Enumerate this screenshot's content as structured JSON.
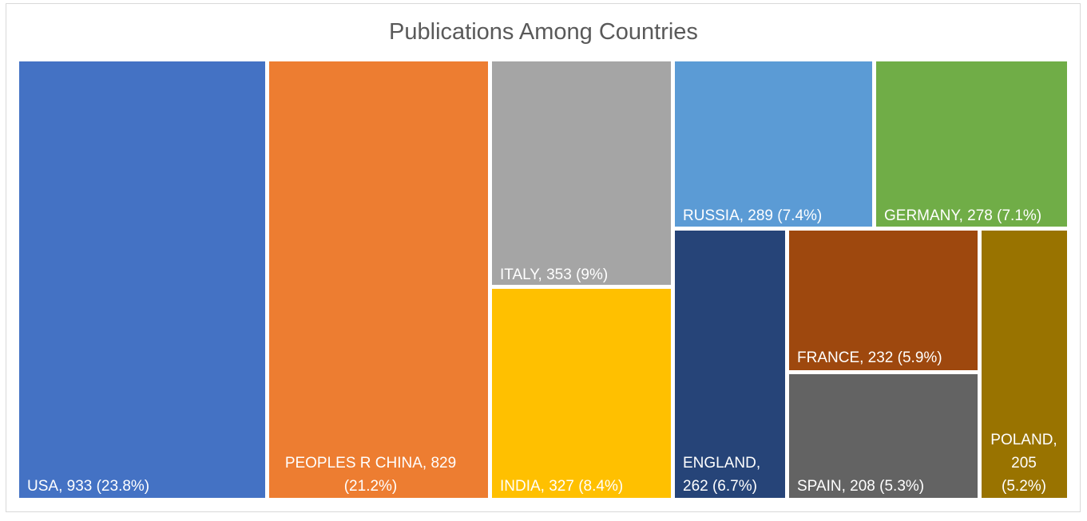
{
  "chart_data": {
    "type": "treemap",
    "title": "Publications Among Countries",
    "items": [
      {
        "name": "USA",
        "value": 933,
        "label": [
          "USA, 933 (23.8%)"
        ],
        "color": "#4472C4"
      },
      {
        "name": "PEOPLES R CHINA",
        "value": 829,
        "label": [
          "PEOPLES R CHINA, 829",
          "(21.2%)"
        ],
        "color": "#ED7D31"
      },
      {
        "name": "ITALY",
        "value": 353,
        "label": [
          "ITALY, 353 (9%)"
        ],
        "color": "#A5A5A5"
      },
      {
        "name": "INDIA",
        "value": 327,
        "label": [
          "INDIA, 327 (8.4%)"
        ],
        "color": "#FFC000"
      },
      {
        "name": "RUSSIA",
        "value": 289,
        "label": [
          "RUSSIA, 289 (7.4%)"
        ],
        "color": "#5B9BD5"
      },
      {
        "name": "GERMANY",
        "value": 278,
        "label": [
          "GERMANY, 278 (7.1%)"
        ],
        "color": "#70AD47"
      },
      {
        "name": "ENGLAND",
        "value": 262,
        "label": [
          "ENGLAND,",
          "262 (6.7%)"
        ],
        "color": "#264478"
      },
      {
        "name": "FRANCE",
        "value": 232,
        "label": [
          "FRANCE, 232 (5.9%)"
        ],
        "color": "#9E480E"
      },
      {
        "name": "SPAIN",
        "value": 208,
        "label": [
          "SPAIN, 208 (5.3%)"
        ],
        "color": "#636363"
      },
      {
        "name": "POLAND",
        "value": 205,
        "label": [
          "POLAND,",
          "205",
          "(5.2%)"
        ],
        "color": "#997300"
      }
    ]
  }
}
